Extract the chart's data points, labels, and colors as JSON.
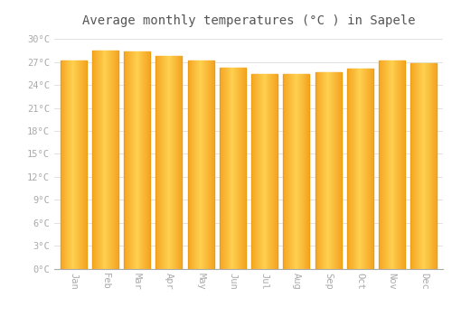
{
  "months": [
    "Jan",
    "Feb",
    "Mar",
    "Apr",
    "May",
    "Jun",
    "Jul",
    "Aug",
    "Sep",
    "Oct",
    "Nov",
    "Dec"
  ],
  "temperatures": [
    27.2,
    28.5,
    28.4,
    27.8,
    27.2,
    26.3,
    25.5,
    25.4,
    25.7,
    26.1,
    27.2,
    26.9
  ],
  "bar_color_left": "#F5A623",
  "bar_color_center": "#FFD060",
  "bar_color_right": "#F5A623",
  "bar_edge_color": "#E8980A",
  "background_color": "#FFFFFF",
  "plot_bg_color": "#FFFFFF",
  "grid_color": "#DDDDDD",
  "title": "Average monthly temperatures (°C ) in Sapele",
  "title_fontsize": 10,
  "tick_label_color": "#AAAAAA",
  "ytick_step": 3,
  "ymin": 0,
  "ymax": 30,
  "xlabel_rotation": 270
}
